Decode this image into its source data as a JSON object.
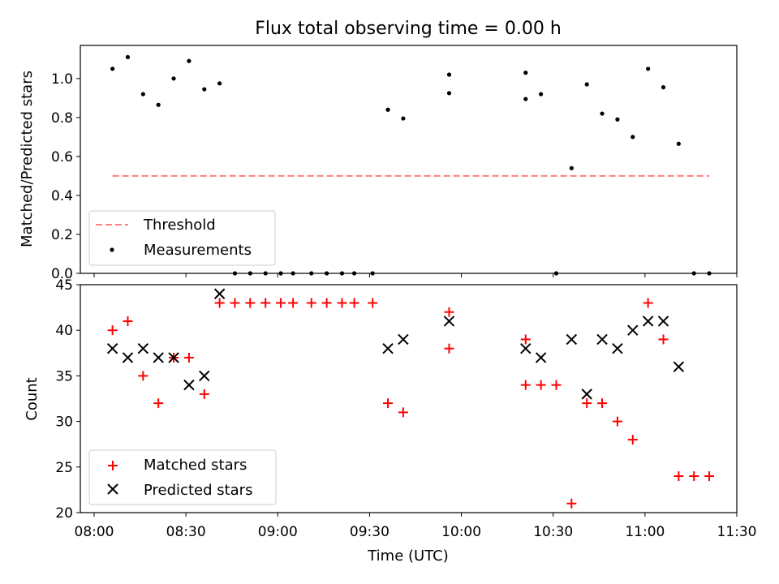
{
  "title": "Flux total observing time = 0.00 h",
  "xlabel": "Time (UTC)",
  "x_tick_labels": [
    "08:00",
    "08:30",
    "09:00",
    "09:30",
    "10:00",
    "10:30",
    "11:00",
    "11:30"
  ],
  "colors": {
    "threshold": "#ff7f7f",
    "measurements": "#000000",
    "matched": "#ff0000",
    "predicted": "#000000"
  },
  "chart_data": [
    {
      "type": "scatter",
      "panel": "top",
      "ylabel": "Matched/Predicted stars",
      "x_range": [
        "08:00",
        "11:30"
      ],
      "ylim": [
        0,
        1.17
      ],
      "y_ticks": [
        "0.0",
        "0.2",
        "0.4",
        "0.6",
        "0.8",
        "1.0"
      ],
      "legend_position": "lower-left",
      "threshold": {
        "name": "Threshold",
        "value": 0.5,
        "x_start": "08:06",
        "x_end": "11:21"
      },
      "series": [
        {
          "name": "Measurements",
          "x": [
            "08:06",
            "08:11",
            "08:16",
            "08:21",
            "08:26",
            "08:31",
            "08:36",
            "08:41",
            "08:46",
            "08:51",
            "08:56",
            "09:01",
            "09:05",
            "09:11",
            "09:16",
            "09:21",
            "09:25",
            "09:31",
            "09:36",
            "09:41",
            "09:56",
            "09:56",
            "10:21",
            "10:21",
            "10:26",
            "10:31",
            "10:36",
            "10:41",
            "10:46",
            "10:51",
            "10:56",
            "11:01",
            "11:06",
            "11:11",
            "11:16",
            "11:21"
          ],
          "y": [
            1.05,
            1.11,
            0.92,
            0.865,
            1.0,
            1.09,
            0.945,
            0.975,
            0,
            0,
            0,
            0,
            0,
            0,
            0,
            0,
            0,
            0,
            0.84,
            0.795,
            1.02,
            0.925,
            1.03,
            0.895,
            0.92,
            0,
            0.54,
            0.97,
            0.82,
            0.79,
            0.7,
            1.05,
            0.955,
            0.665,
            0,
            0
          ]
        }
      ]
    },
    {
      "type": "scatter",
      "panel": "bottom",
      "ylabel": "Count",
      "x_range": [
        "08:00",
        "11:30"
      ],
      "ylim": [
        20,
        45
      ],
      "y_ticks": [
        "20",
        "25",
        "30",
        "35",
        "40",
        "45"
      ],
      "legend_position": "lower-left",
      "series": [
        {
          "name": "Matched stars",
          "marker": "plus",
          "x": [
            "08:06",
            "08:11",
            "08:16",
            "08:21",
            "08:26",
            "08:31",
            "08:36",
            "08:41",
            "08:46",
            "08:51",
            "08:56",
            "09:01",
            "09:05",
            "09:11",
            "09:16",
            "09:21",
            "09:25",
            "09:31",
            "09:36",
            "09:41",
            "09:56",
            "09:56",
            "10:21",
            "10:21",
            "10:26",
            "10:31",
            "10:36",
            "10:41",
            "10:46",
            "10:51",
            "10:56",
            "11:01",
            "11:06",
            "11:11",
            "11:16",
            "11:21"
          ],
          "y": [
            40,
            41,
            35,
            32,
            37,
            37,
            33,
            43,
            43,
            43,
            43,
            43,
            43,
            43,
            43,
            43,
            43,
            43,
            32,
            31,
            42,
            38,
            39,
            34,
            34,
            34,
            21,
            32,
            32,
            30,
            28,
            43,
            39,
            24,
            24,
            24
          ]
        },
        {
          "name": "Predicted stars",
          "marker": "x",
          "x": [
            "08:06",
            "08:11",
            "08:16",
            "08:21",
            "08:26",
            "08:31",
            "08:36",
            "08:41",
            "09:36",
            "09:41",
            "09:56",
            "10:21",
            "10:26",
            "10:36",
            "10:41",
            "10:46",
            "10:51",
            "10:56",
            "11:01",
            "11:06",
            "11:11"
          ],
          "y": [
            38,
            37,
            38,
            37,
            37,
            34,
            35,
            44,
            38,
            39,
            41,
            38,
            37,
            39,
            33,
            39,
            38,
            40,
            41,
            41,
            36
          ]
        }
      ]
    }
  ]
}
